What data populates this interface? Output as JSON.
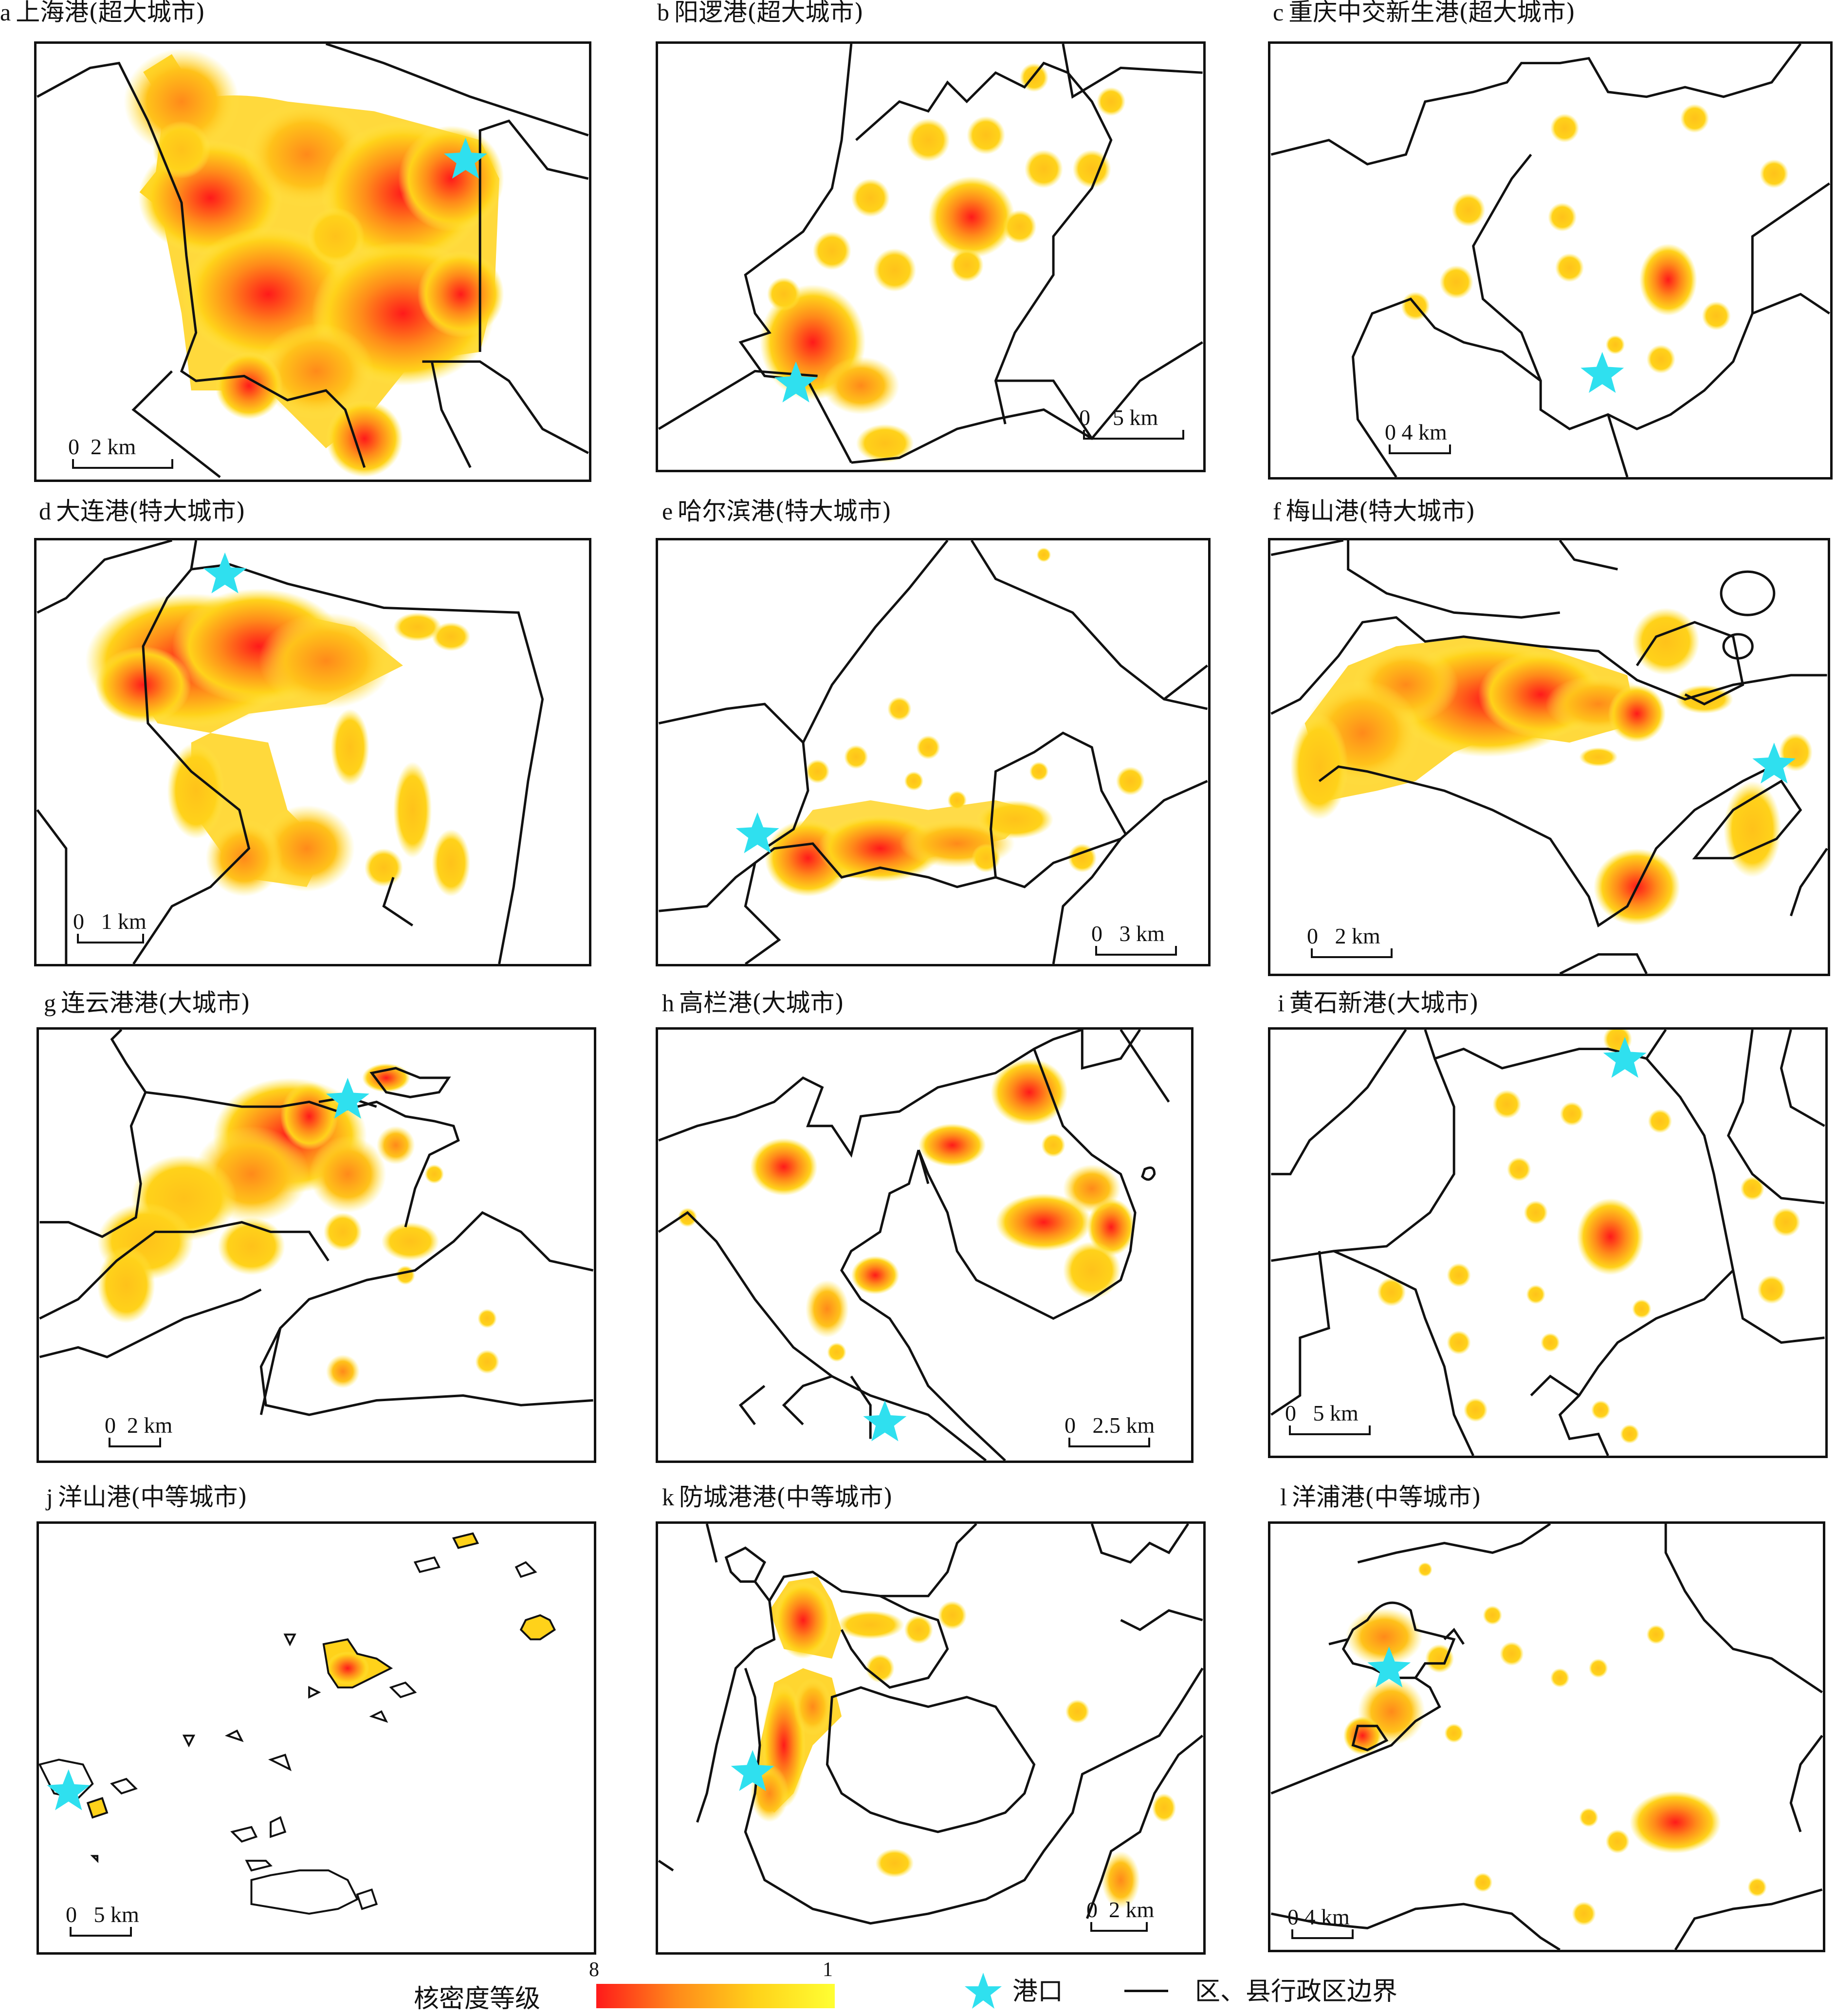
{
  "panels": [
    {
      "letter": "a",
      "name": "上海港",
      "category": "(超大城市)",
      "scale": {
        "zero": "0",
        "dist": "2 km"
      }
    },
    {
      "letter": "b",
      "name": "阳逻港",
      "category": "(超大城市)",
      "scale": {
        "zero": "0",
        "dist": "5 km"
      }
    },
    {
      "letter": "c",
      "name": "重庆中交新生港",
      "category": "(超大城市)",
      "scale": {
        "zero": "0",
        "dist": "4 km"
      }
    },
    {
      "letter": "d",
      "name": "大连港",
      "category": "(特大城市)",
      "scale": {
        "zero": "0",
        "dist": "1 km"
      }
    },
    {
      "letter": "e",
      "name": "哈尔滨港",
      "category": "(特大城市)",
      "scale": {
        "zero": "0",
        "dist": "3 km"
      }
    },
    {
      "letter": "f",
      "name": "梅山港",
      "category": "(特大城市)",
      "scale": {
        "zero": "0",
        "dist": "2 km"
      }
    },
    {
      "letter": "g",
      "name": "连云港港",
      "category": "(大城市)",
      "scale": {
        "zero": "0",
        "dist": "2 km"
      }
    },
    {
      "letter": "h",
      "name": "高栏港",
      "category": "(大城市)",
      "scale": {
        "zero": "0",
        "dist": "2.5 km"
      }
    },
    {
      "letter": "i",
      "name": "黄石新港",
      "category": "(大城市)",
      "scale": {
        "zero": "0",
        "dist": "5 km"
      }
    },
    {
      "letter": "j",
      "name": "洋山港",
      "category": "(中等城市)",
      "scale": {
        "zero": "0",
        "dist": "5 km"
      }
    },
    {
      "letter": "k",
      "name": "防城港港",
      "category": "(中等城市)",
      "scale": {
        "zero": "0",
        "dist": "2 km"
      }
    },
    {
      "letter": "l",
      "name": "洋浦港",
      "category": "(中等城市)",
      "scale": {
        "zero": "0",
        "dist": "4 km"
      }
    }
  ],
  "legend": {
    "density_label": "核密度等级",
    "density_max": "8",
    "density_min": "1",
    "port_label": "港口",
    "boundary_label": "区、县行政区边界"
  },
  "colors": {
    "port_star": "#2fe0ef",
    "high_density": "#ff1a1a",
    "mid_density": "#ff8a1a",
    "low_density": "#ffd21a",
    "lowest_density": "#ffff33",
    "boundary": "#111111"
  }
}
